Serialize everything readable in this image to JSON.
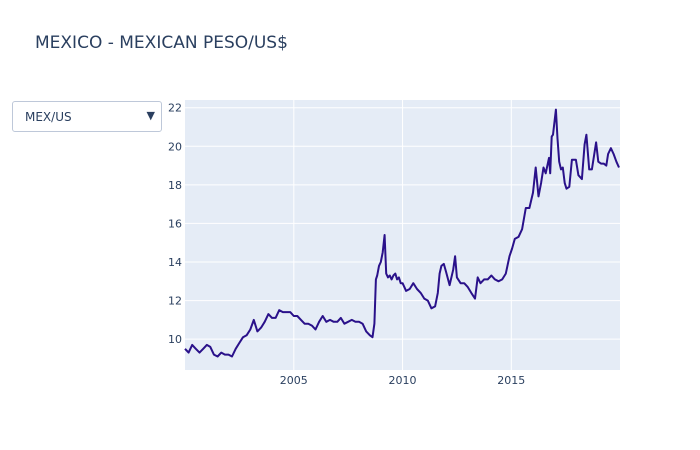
{
  "title": "MEXICO - MEXICAN PESO/US$",
  "dropdown": {
    "selected": "MEX/US",
    "arrow_icon": "triangle-down-icon"
  },
  "colors": {
    "line": "#2a118a",
    "plot_bg": "#e5ecf6",
    "grid": "#ffffff",
    "text": "#2a3f5f"
  },
  "chart_data": {
    "type": "line",
    "title": "MEXICO - MEXICAN PESO/US$",
    "xlabel": "",
    "ylabel": "",
    "xlim": [
      "2000-01-01",
      "2019-12-31"
    ],
    "ylim": [
      8.4,
      22.4
    ],
    "x_ticks": [
      {
        "value": "2005-01-01",
        "label": "2005"
      },
      {
        "value": "2010-01-01",
        "label": "2010"
      },
      {
        "value": "2015-01-01",
        "label": "2015"
      }
    ],
    "y_ticks": [
      10,
      12,
      14,
      16,
      18,
      20,
      22
    ],
    "grid": true,
    "legend": "none",
    "series": [
      {
        "x": [
          "2000-01-01",
          "2000-03-01",
          "2000-05-01",
          "2000-07-01",
          "2000-09-01",
          "2000-11-01",
          "2001-01-01",
          "2001-03-01",
          "2001-05-01",
          "2001-07-01",
          "2001-09-01",
          "2001-11-01",
          "2002-01-01",
          "2002-03-01",
          "2002-05-01",
          "2002-07-01",
          "2002-09-01",
          "2002-11-01",
          "2003-01-01",
          "2003-03-01",
          "2003-05-01",
          "2003-07-01",
          "2003-09-01",
          "2003-11-01",
          "2004-01-01",
          "2004-03-01",
          "2004-05-01",
          "2004-07-01",
          "2004-09-01",
          "2004-11-01",
          "2005-01-01",
          "2005-03-01",
          "2005-05-01",
          "2005-07-01",
          "2005-09-01",
          "2005-11-01",
          "2006-01-01",
          "2006-03-01",
          "2006-05-01",
          "2006-07-01",
          "2006-09-01",
          "2006-11-01",
          "2007-01-01",
          "2007-03-01",
          "2007-05-01",
          "2007-07-01",
          "2007-09-01",
          "2007-11-01",
          "2008-01-01",
          "2008-03-01",
          "2008-05-01",
          "2008-07-01",
          "2008-08-15",
          "2008-09-15",
          "2008-10-10",
          "2008-11-01",
          "2008-12-01",
          "2009-01-01",
          "2009-02-01",
          "2009-03-05",
          "2009-04-01",
          "2009-05-01",
          "2009-06-01",
          "2009-07-01",
          "2009-08-01",
          "2009-09-01",
          "2009-10-01",
          "2009-11-01",
          "2009-12-01",
          "2010-01-01",
          "2010-03-01",
          "2010-05-01",
          "2010-07-01",
          "2010-09-01",
          "2010-11-01",
          "2011-01-01",
          "2011-03-01",
          "2011-05-01",
          "2011-07-01",
          "2011-08-15",
          "2011-09-15",
          "2011-10-15",
          "2011-11-25",
          "2012-01-01",
          "2012-03-01",
          "2012-05-01",
          "2012-06-01",
          "2012-07-01",
          "2012-09-01",
          "2012-11-01",
          "2013-01-01",
          "2013-03-01",
          "2013-05-01",
          "2013-06-15",
          "2013-08-01",
          "2013-10-01",
          "2013-12-01",
          "2014-02-01",
          "2014-04-01",
          "2014-06-01",
          "2014-08-01",
          "2014-10-01",
          "2014-12-01",
          "2015-01-15",
          "2015-03-01",
          "2015-05-01",
          "2015-07-01",
          "2015-09-01",
          "2015-11-01",
          "2016-01-01",
          "2016-02-15",
          "2016-04-01",
          "2016-05-15",
          "2016-06-25",
          "2016-08-01",
          "2016-09-25",
          "2016-10-15",
          "2016-11-10",
          "2016-12-01",
          "2017-01-19",
          "2017-02-15",
          "2017-03-15",
          "2017-04-15",
          "2017-05-15",
          "2017-06-15",
          "2017-07-15",
          "2017-09-01",
          "2017-10-15",
          "2017-12-20",
          "2018-02-01",
          "2018-04-01",
          "2018-05-15",
          "2018-06-15",
          "2018-08-01",
          "2018-09-15",
          "2018-11-25",
          "2019-01-01",
          "2019-02-15",
          "2019-04-01",
          "2019-05-15",
          "2019-06-15",
          "2019-08-01",
          "2019-09-15",
          "2019-11-01",
          "2019-12-15"
        ],
        "y": [
          9.5,
          9.3,
          9.7,
          9.5,
          9.3,
          9.5,
          9.7,
          9.6,
          9.2,
          9.1,
          9.3,
          9.2,
          9.2,
          9.1,
          9.5,
          9.8,
          10.1,
          10.2,
          10.5,
          11.0,
          10.4,
          10.6,
          10.9,
          11.3,
          11.1,
          11.1,
          11.5,
          11.4,
          11.4,
          11.4,
          11.2,
          11.2,
          11.0,
          10.8,
          10.8,
          10.7,
          10.5,
          10.9,
          11.2,
          10.9,
          11.0,
          10.9,
          10.9,
          11.1,
          10.8,
          10.9,
          11.0,
          10.9,
          10.9,
          10.8,
          10.4,
          10.2,
          10.1,
          10.8,
          13.1,
          13.3,
          13.8,
          14.0,
          14.5,
          15.4,
          13.4,
          13.2,
          13.3,
          13.1,
          13.3,
          13.4,
          13.1,
          13.2,
          12.9,
          12.9,
          12.5,
          12.6,
          12.9,
          12.6,
          12.4,
          12.1,
          12.0,
          11.6,
          11.7,
          12.4,
          13.4,
          13.8,
          13.9,
          13.5,
          12.8,
          13.6,
          14.3,
          13.2,
          12.9,
          12.9,
          12.7,
          12.4,
          12.1,
          13.2,
          12.9,
          13.1,
          13.1,
          13.3,
          13.1,
          13.0,
          13.1,
          13.4,
          14.3,
          14.7,
          15.2,
          15.3,
          15.7,
          16.8,
          16.8,
          17.6,
          18.9,
          17.4,
          18.1,
          18.9,
          18.6,
          19.4,
          18.6,
          20.5,
          20.6,
          21.9,
          20.4,
          19.2,
          18.8,
          18.9,
          18.1,
          17.8,
          17.9,
          19.3,
          19.3,
          18.5,
          18.3,
          20.1,
          20.6,
          18.8,
          18.8,
          20.2,
          19.2,
          19.1,
          19.1,
          19.0,
          19.6,
          19.9,
          19.6,
          19.2,
          18.9
        ]
      }
    ]
  }
}
